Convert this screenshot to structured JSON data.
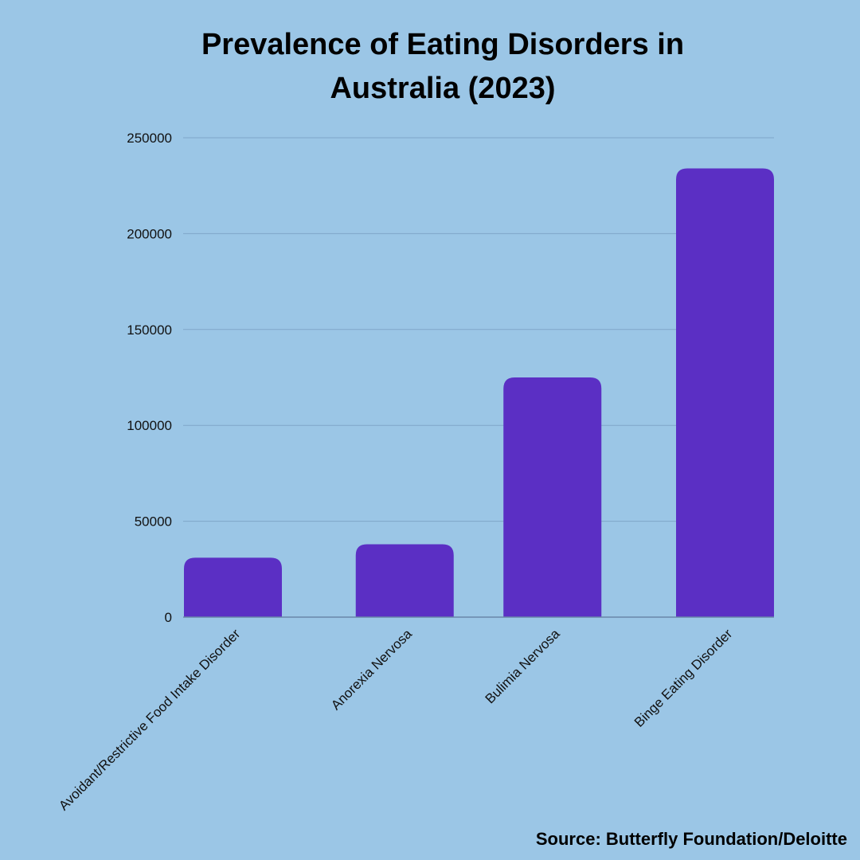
{
  "chart_data": {
    "type": "bar",
    "title_lines": [
      "Prevalence of Eating Disorders in",
      "Australia (2023)"
    ],
    "categories": [
      "Avoidant/Restrictive Food Intake Disorder",
      "Anorexia Nervosa",
      "Bulimia Nervosa",
      "Binge Eating Disorder"
    ],
    "values": [
      31000,
      38000,
      125000,
      234000
    ],
    "yticks": [
      "0",
      "50000",
      "100000",
      "150000",
      "200000",
      "250000"
    ],
    "ylim": [
      0,
      250000
    ],
    "xlabel": "",
    "ylabel": "",
    "grid": true,
    "legend": "none",
    "bar_color": "#5b2fc4",
    "background_color": "#9bc6e6",
    "source": "Source: Butterfly Foundation/Deloitte"
  }
}
